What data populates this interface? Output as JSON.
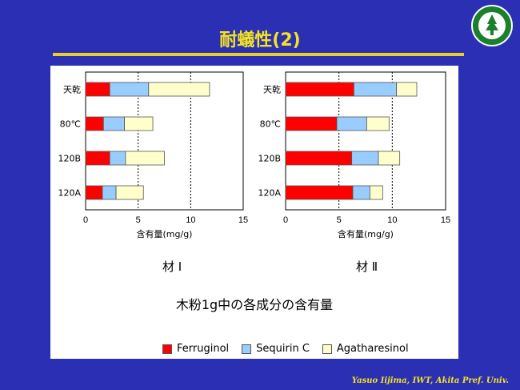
{
  "slide": {
    "title": "耐蟻性(2)",
    "footer": "Yasuo Iijima, IWT, Akita Pref.  Univ.",
    "subtitle": "木粉1g中の各成分の含有量",
    "caption_left": "材 Ⅰ",
    "caption_right": "材 Ⅱ",
    "legend": [
      "Ferruginol",
      "Sequirin C",
      "Agatharesinol"
    ],
    "colors": {
      "background": "#2b2fb3",
      "accent": "#f3e321",
      "ferruginol": "#ff0000",
      "sequirin": "#99ccff",
      "agatharesinol": "#ffffcc"
    }
  },
  "chart_data": [
    {
      "type": "bar",
      "orientation": "horizontal",
      "stacked": true,
      "categories": [
        "天乾",
        "80℃",
        "120B",
        "120A"
      ],
      "series": [
        {
          "name": "Ferruginol",
          "values": [
            2.3,
            1.7,
            2.3,
            1.6
          ]
        },
        {
          "name": "Sequirin C",
          "values": [
            3.7,
            2.0,
            1.5,
            1.3
          ]
        },
        {
          "name": "Agatharesinol",
          "values": [
            5.8,
            2.7,
            3.7,
            2.6
          ]
        }
      ],
      "xlabel": "含有量(mg/g)",
      "xlim": [
        0,
        15
      ],
      "xticks": [
        0,
        5,
        10,
        15
      ],
      "grid": true
    },
    {
      "type": "bar",
      "orientation": "horizontal",
      "stacked": true,
      "categories": [
        "天乾",
        "80℃",
        "120B",
        "120A"
      ],
      "series": [
        {
          "name": "Ferruginol",
          "values": [
            6.4,
            4.8,
            6.2,
            6.3
          ]
        },
        {
          "name": "Sequirin C",
          "values": [
            4.0,
            2.8,
            2.5,
            1.6
          ]
        },
        {
          "name": "Agatharesinol",
          "values": [
            1.9,
            2.1,
            2.0,
            1.2
          ]
        }
      ],
      "xlabel": "含有量(mg/g)",
      "xlim": [
        0,
        15
      ],
      "xticks": [
        0,
        5,
        10,
        15
      ],
      "grid": true
    }
  ]
}
